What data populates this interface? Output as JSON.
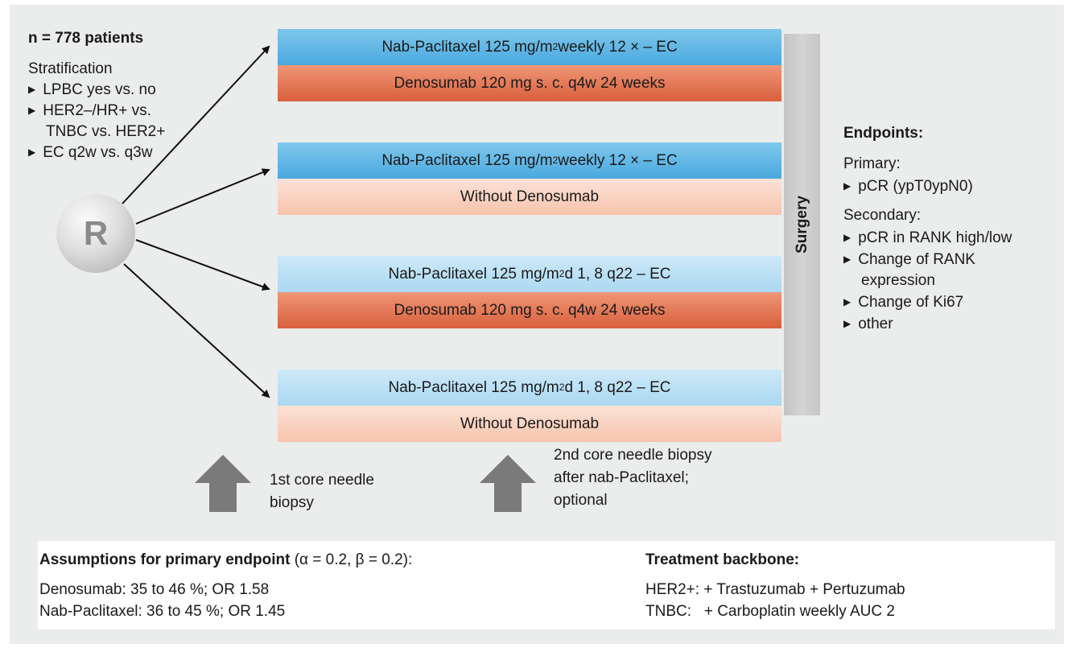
{
  "study": {
    "n_label": "n = 778 patients",
    "stratification_title": "Stratification",
    "stratification_items": [
      "LPBC yes vs. no",
      "HER2–/HR+ vs.",
      "TNBC vs. HER2+",
      "EC q2w vs. q3w"
    ]
  },
  "randomization_label": "R",
  "arms": [
    {
      "top": {
        "pre": "Nab-Paclitaxel 125 mg/m",
        "sup": "2",
        "post": " weekly 12 × – EC"
      },
      "bottom": "Denosumab 120 mg s. c. q4w 24 weeks"
    },
    {
      "top": {
        "pre": "Nab-Paclitaxel 125 mg/m",
        "sup": "2",
        "post": " weekly 12 × – EC"
      },
      "bottom": "Without Denosumab"
    },
    {
      "top": {
        "pre": "Nab-Paclitaxel 125 mg/m",
        "sup": "2",
        "post": " d 1, 8 q22 – EC"
      },
      "bottom": "Denosumab 120 mg s. c. q4w 24 weeks"
    },
    {
      "top": {
        "pre": "Nab-Paclitaxel 125 mg/m",
        "sup": "2",
        "post": " d 1, 8 q22 – EC"
      },
      "bottom": "Without Denosumab"
    }
  ],
  "surgery_label": "Surgery",
  "endpoints": {
    "title": "Endpoints:",
    "primary_label": "Primary:",
    "primary_items": [
      "pCR (ypT0ypN0)"
    ],
    "secondary_label": "Secondary:",
    "secondary_items": [
      "pCR in RANK high/low",
      "Change of RANK",
      "expression",
      "Change of Ki67",
      "other"
    ]
  },
  "biopsy1": {
    "lines": [
      "1st core needle",
      "biopsy"
    ]
  },
  "biopsy2": {
    "lines": [
      "2nd core needle biopsy",
      "after nab-Paclitaxel;",
      "optional"
    ]
  },
  "assumptions": {
    "title": "Assumptions for primary endpoint",
    "params": " (α = 0.2, β = 0.2):",
    "lines": [
      "Denosumab: 35 to 46 %; OR 1.58",
      "Nab-Paclitaxel: 36 to 45 %; OR 1.45"
    ]
  },
  "backbone": {
    "title": "Treatment backbone:",
    "lines": [
      "HER2+: + Trastuzumab + Pertuzumab",
      "TNBC:   + Carboplatin weekly AUC 2"
    ]
  },
  "colors": {
    "blue_dark": "#4aa9df",
    "blue_light": "#aad8f1",
    "orange_dark": "#d8603d",
    "orange_light": "#f7c4ad",
    "arrow_gray": "#7a7a7a",
    "background": "#ebecec"
  }
}
